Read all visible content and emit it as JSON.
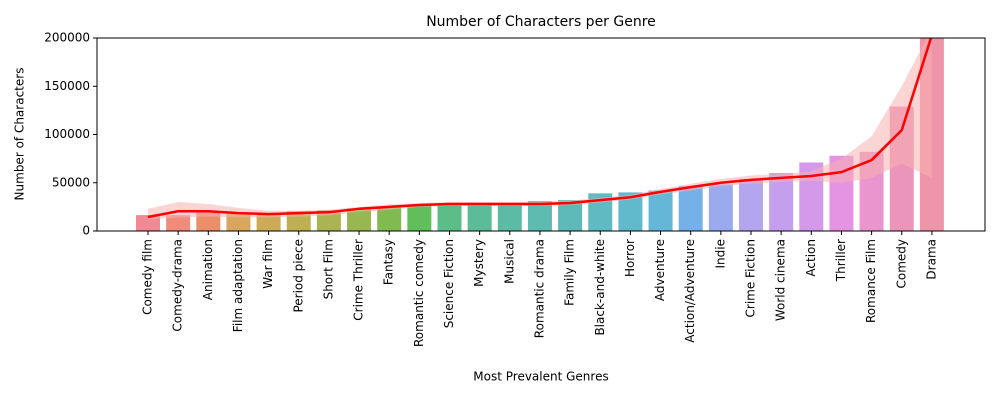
{
  "chart_data": {
    "type": "bar",
    "title": "Number of Characters per Genre",
    "x_label": "Most Prevalent Genres",
    "y_label": "Number of Characters",
    "categories": [
      "Comedy film",
      "Comedy-drama",
      "Animation",
      "Film adaptation",
      "War film",
      "Period piece",
      "Short Film",
      "Crime Thriller",
      "Fantasy",
      "Romantic comedy",
      "Science Fiction",
      "Mystery",
      "Musical",
      "Romantic drama",
      "Family Film",
      "Black-and-white",
      "Horror",
      "Adventure",
      "Action/Adventure",
      "Indie",
      "Crime Fiction",
      "World cinema",
      "Action",
      "Thriller",
      "Romance Film",
      "Comedy",
      "Drama"
    ],
    "values": [
      16500,
      16500,
      19500,
      19000,
      19000,
      20500,
      21500,
      23500,
      25500,
      26500,
      27500,
      27500,
      28500,
      31000,
      32000,
      39000,
      40000,
      42000,
      46500,
      48500,
      54000,
      60000,
      71000,
      78000,
      82000,
      129000,
      205000
    ],
    "colors": [
      "#f07c8a",
      "#ef7f6e",
      "#e8835a",
      "#d49c4a",
      "#c8a244",
      "#b7a73f",
      "#a2ac3f",
      "#8daf3f",
      "#74b23f",
      "#50b749",
      "#4ab67c",
      "#4ab58e",
      "#4bb49b",
      "#4cb4a7",
      "#4db3b1",
      "#4eb2bb",
      "#50b1c6",
      "#53afd3",
      "#66a9e6",
      "#8ea1ec",
      "#ab9bec",
      "#bd95ec",
      "#d08ee8",
      "#e287e0",
      "#e88ac8",
      "#ea8ab3",
      "#ec8aa0"
    ],
    "trend": {
      "color": "#ff0000",
      "band_color": "#f8b0b0",
      "values": [
        14500,
        20500,
        20500,
        18500,
        17500,
        18500,
        19500,
        23000,
        25000,
        27000,
        28000,
        28000,
        28000,
        28000,
        29000,
        32000,
        35000,
        40500,
        45500,
        50000,
        53000,
        55000,
        57000,
        61000,
        73500,
        104500,
        203000
      ],
      "low": [
        12000,
        14000,
        15000,
        14000,
        14000,
        15000,
        16000,
        20000,
        22000,
        25000,
        26000,
        26000,
        26000,
        26000,
        27000,
        29500,
        32500,
        38000,
        42000,
        46500,
        49000,
        51000,
        52000,
        50000,
        55000,
        70000,
        55000
      ],
      "high": [
        23000,
        30000,
        28000,
        24000,
        21000,
        21000,
        22000,
        25000,
        27500,
        29000,
        30000,
        30000,
        30000,
        30500,
        31500,
        34500,
        37500,
        43500,
        49000,
        54000,
        57500,
        59000,
        62000,
        75000,
        98000,
        150000,
        210000
      ]
    },
    "ylim": [
      0,
      200000
    ],
    "yticks": [
      0,
      50000,
      100000,
      150000,
      200000
    ]
  }
}
